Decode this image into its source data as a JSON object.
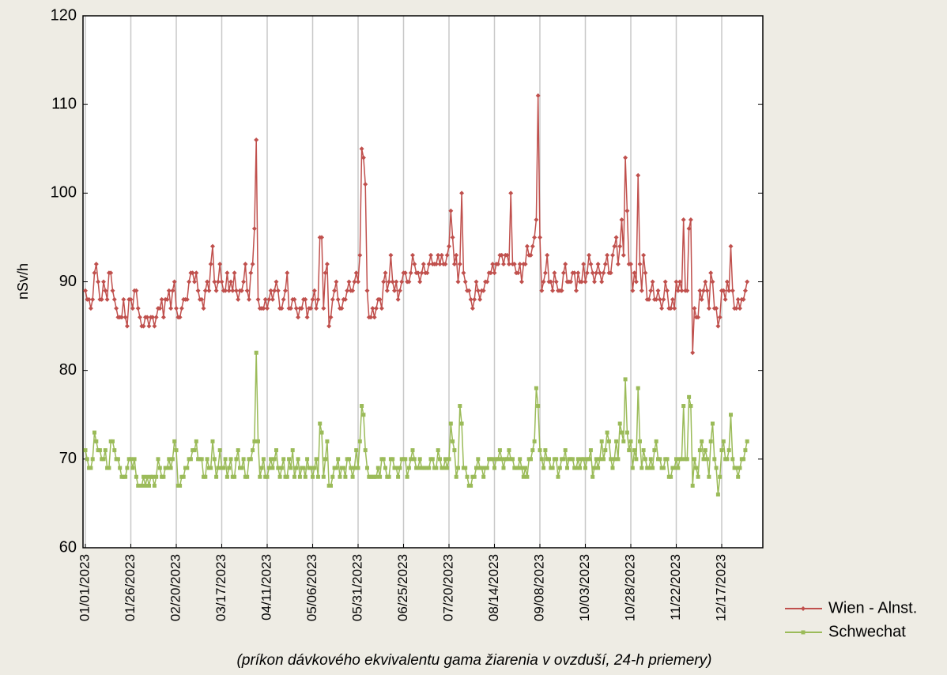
{
  "chart_data": {
    "type": "line",
    "y_label": "nSv/h",
    "caption": "(príkon dávkového ekvivalentu gama žiarenia v ovzduší, 24-h priemery)",
    "ylim": [
      60,
      120
    ],
    "yticks": [
      60,
      70,
      80,
      90,
      100,
      110,
      120
    ],
    "grid": "vertical",
    "legend": "bottom-right",
    "categories": [
      "01/01/2023",
      null,
      null,
      null,
      null,
      null,
      null,
      null,
      null,
      null,
      null,
      null,
      null,
      null,
      null,
      null,
      null,
      null,
      null,
      null,
      null,
      null,
      null,
      null,
      null,
      "01/26/2023",
      null,
      null,
      null,
      null,
      null,
      null,
      null,
      null,
      null,
      null,
      null,
      null,
      null,
      null,
      null,
      null,
      null,
      null,
      null,
      null,
      null,
      null,
      null,
      null,
      "02/20/2023",
      null,
      null,
      null,
      null,
      null,
      null,
      null,
      null,
      null,
      null,
      null,
      null,
      null,
      null,
      null,
      null,
      null,
      null,
      null,
      null,
      null,
      null,
      null,
      null,
      "03/17/2023",
      null,
      null,
      null,
      null,
      null,
      null,
      null,
      null,
      null,
      null,
      null,
      null,
      null,
      null,
      null,
      null,
      null,
      null,
      null,
      null,
      null,
      null,
      null,
      null,
      "04/11/2023",
      null,
      null,
      null,
      null,
      null,
      null,
      null,
      null,
      null,
      null,
      null,
      null,
      null,
      null,
      null,
      null,
      null,
      null,
      null,
      null,
      null,
      null,
      null,
      null,
      "05/06/2023",
      null,
      null,
      null,
      null,
      null,
      null,
      null,
      null,
      null,
      null,
      null,
      null,
      null,
      null,
      null,
      null,
      null,
      null,
      null,
      null,
      null,
      null,
      null,
      null,
      "05/31/2023",
      null,
      null,
      null,
      null,
      null,
      null,
      null,
      null,
      null,
      null,
      null,
      null,
      null,
      null,
      null,
      null,
      null,
      null,
      null,
      null,
      null,
      null,
      null,
      null,
      "06/25/2023",
      null,
      null,
      null,
      null,
      null,
      null,
      null,
      null,
      null,
      null,
      null,
      null,
      null,
      null,
      null,
      null,
      null,
      null,
      null,
      null,
      null,
      null,
      null,
      null,
      "07/20/2023",
      null,
      null,
      null,
      null,
      null,
      null,
      null,
      null,
      null,
      null,
      null,
      null,
      null,
      null,
      null,
      null,
      null,
      null,
      null,
      null,
      null,
      null,
      null,
      null,
      "08/14/2023",
      null,
      null,
      null,
      null,
      null,
      null,
      null,
      null,
      null,
      null,
      null,
      null,
      null,
      null,
      null,
      null,
      null,
      null,
      null,
      null,
      null,
      null,
      null,
      null,
      "09/08/2023",
      null,
      null,
      null,
      null,
      null,
      null,
      null,
      null,
      null,
      null,
      null,
      null,
      null,
      null,
      null,
      null,
      null,
      null,
      null,
      null,
      null,
      null,
      null,
      null,
      "10/03/2023",
      null,
      null,
      null,
      null,
      null,
      null,
      null,
      null,
      null,
      null,
      null,
      null,
      null,
      null,
      null,
      null,
      null,
      null,
      null,
      null,
      null,
      null,
      null,
      null,
      "10/28/2023",
      null,
      null,
      null,
      null,
      null,
      null,
      null,
      null,
      null,
      null,
      null,
      null,
      null,
      null,
      null,
      null,
      null,
      null,
      null,
      null,
      null,
      null,
      null,
      null,
      "11/22/2023",
      null,
      null,
      null,
      null,
      null,
      null,
      null,
      null,
      null,
      null,
      null,
      null,
      null,
      null,
      null,
      null,
      null,
      null,
      null,
      null,
      null,
      null,
      null,
      null,
      "12/17/2023",
      null,
      null,
      null,
      null,
      null,
      null,
      null,
      null,
      null,
      null,
      null,
      null,
      null,
      null
    ],
    "series": [
      {
        "name": "Wien - Alnst.",
        "color": "#c0504d",
        "marker": "diamond",
        "values": [
          89,
          88,
          88,
          87,
          88,
          91,
          92,
          90,
          88,
          88,
          90,
          89,
          88,
          91,
          91,
          89,
          88,
          87,
          86,
          86,
          86,
          88,
          86,
          85,
          88,
          88,
          87,
          89,
          89,
          87,
          86,
          85,
          85,
          86,
          86,
          85,
          86,
          86,
          85,
          86,
          87,
          87,
          88,
          86,
          88,
          88,
          89,
          87,
          89,
          90,
          87,
          86,
          86,
          87,
          88,
          88,
          88,
          90,
          91,
          91,
          90,
          91,
          89,
          88,
          88,
          87,
          89,
          90,
          89,
          92,
          94,
          90,
          89,
          90,
          92,
          90,
          89,
          89,
          91,
          89,
          90,
          89,
          91,
          89,
          88,
          89,
          89,
          90,
          92,
          89,
          88,
          91,
          92,
          96,
          106,
          88,
          87,
          87,
          87,
          88,
          87,
          88,
          89,
          88,
          89,
          90,
          89,
          87,
          87,
          88,
          89,
          91,
          87,
          87,
          88,
          88,
          87,
          86,
          87,
          87,
          88,
          88,
          86,
          87,
          87,
          88,
          89,
          87,
          88,
          95,
          95,
          87,
          91,
          92,
          85,
          86,
          88,
          89,
          90,
          88,
          87,
          87,
          88,
          88,
          89,
          90,
          89,
          89,
          90,
          91,
          90,
          93,
          105,
          104,
          101,
          89,
          86,
          86,
          87,
          86,
          87,
          88,
          88,
          87,
          90,
          91,
          89,
          90,
          93,
          90,
          89,
          90,
          88,
          89,
          90,
          91,
          91,
          90,
          90,
          91,
          93,
          92,
          91,
          91,
          90,
          91,
          92,
          91,
          91,
          92,
          93,
          92,
          92,
          92,
          93,
          92,
          93,
          92,
          92,
          93,
          94,
          98,
          95,
          92,
          93,
          90,
          92,
          100,
          91,
          90,
          89,
          89,
          88,
          87,
          88,
          90,
          89,
          88,
          89,
          89,
          90,
          90,
          91,
          91,
          92,
          91,
          92,
          92,
          93,
          93,
          92,
          93,
          93,
          92,
          100,
          92,
          92,
          91,
          91,
          92,
          90,
          92,
          92,
          94,
          93,
          93,
          94,
          95,
          97,
          111,
          95,
          89,
          90,
          91,
          93,
          90,
          90,
          89,
          91,
          90,
          89,
          89,
          89,
          91,
          92,
          90,
          90,
          90,
          91,
          91,
          89,
          91,
          90,
          90,
          92,
          90,
          91,
          93,
          92,
          91,
          90,
          91,
          92,
          91,
          90,
          91,
          92,
          93,
          91,
          91,
          93,
          94,
          95,
          92,
          94,
          97,
          93,
          104,
          98,
          92,
          92,
          89,
          91,
          90,
          102,
          92,
          89,
          93,
          91,
          88,
          88,
          89,
          90,
          88,
          88,
          89,
          88,
          87,
          88,
          90,
          89,
          87,
          87,
          88,
          87,
          90,
          89,
          90,
          89,
          97,
          89,
          89,
          96,
          97,
          82,
          87,
          86,
          86,
          89,
          88,
          89,
          90,
          89,
          87,
          91,
          90,
          87,
          87,
          85,
          86,
          89,
          89,
          88,
          90,
          89,
          94,
          89,
          87,
          87,
          88,
          87,
          88,
          88,
          89,
          90
        ]
      },
      {
        "name": "Schwechat",
        "color": "#9bbb59",
        "marker": "square",
        "values": [
          71,
          70,
          69,
          69,
          70,
          73,
          72,
          71,
          71,
          70,
          70,
          71,
          69,
          69,
          72,
          72,
          71,
          70,
          70,
          69,
          68,
          68,
          68,
          69,
          70,
          70,
          69,
          70,
          68,
          67,
          67,
          67,
          68,
          67,
          68,
          67,
          68,
          68,
          67,
          68,
          70,
          69,
          68,
          68,
          69,
          69,
          70,
          69,
          70,
          72,
          71,
          67,
          67,
          68,
          68,
          69,
          69,
          70,
          70,
          71,
          71,
          72,
          70,
          70,
          70,
          68,
          68,
          70,
          69,
          69,
          72,
          70,
          68,
          69,
          71,
          69,
          69,
          70,
          68,
          69,
          70,
          68,
          68,
          70,
          71,
          69,
          69,
          70,
          68,
          68,
          70,
          70,
          71,
          72,
          82,
          72,
          68,
          69,
          70,
          68,
          68,
          69,
          70,
          69,
          70,
          71,
          69,
          68,
          69,
          70,
          68,
          68,
          70,
          69,
          71,
          68,
          69,
          70,
          68,
          69,
          69,
          68,
          70,
          69,
          69,
          68,
          69,
          70,
          68,
          74,
          73,
          68,
          70,
          72,
          67,
          67,
          68,
          69,
          69,
          70,
          68,
          69,
          69,
          68,
          70,
          70,
          69,
          68,
          69,
          71,
          69,
          72,
          76,
          75,
          71,
          69,
          68,
          68,
          68,
          68,
          68,
          69,
          68,
          70,
          70,
          69,
          68,
          68,
          70,
          70,
          69,
          69,
          68,
          69,
          70,
          70,
          70,
          68,
          69,
          70,
          71,
          70,
          69,
          69,
          70,
          69,
          69,
          69,
          69,
          69,
          70,
          70,
          69,
          69,
          71,
          70,
          69,
          69,
          70,
          69,
          70,
          74,
          72,
          71,
          68,
          69,
          76,
          74,
          69,
          69,
          68,
          67,
          67,
          68,
          68,
          69,
          70,
          69,
          69,
          68,
          69,
          69,
          70,
          70,
          70,
          69,
          70,
          70,
          71,
          70,
          69,
          70,
          70,
          71,
          70,
          70,
          69,
          69,
          69,
          70,
          69,
          68,
          69,
          68,
          70,
          70,
          71,
          72,
          78,
          76,
          71,
          70,
          69,
          71,
          70,
          70,
          69,
          69,
          70,
          70,
          68,
          69,
          70,
          70,
          71,
          69,
          70,
          70,
          70,
          69,
          69,
          70,
          69,
          70,
          70,
          69,
          70,
          70,
          71,
          68,
          69,
          70,
          69,
          70,
          72,
          70,
          71,
          73,
          72,
          70,
          69,
          70,
          72,
          70,
          74,
          73,
          72,
          79,
          73,
          71,
          72,
          69,
          71,
          70,
          78,
          72,
          69,
          71,
          70,
          69,
          69,
          70,
          69,
          71,
          72,
          70,
          70,
          69,
          69,
          70,
          70,
          68,
          68,
          69,
          69,
          70,
          69,
          70,
          70,
          76,
          70,
          70,
          77,
          76,
          67,
          70,
          69,
          68,
          71,
          72,
          70,
          71,
          70,
          68,
          72,
          74,
          70,
          69,
          66,
          68,
          71,
          72,
          70,
          70,
          71,
          75,
          70,
          69,
          69,
          68,
          69,
          70,
          70,
          71,
          72
        ]
      }
    ]
  }
}
